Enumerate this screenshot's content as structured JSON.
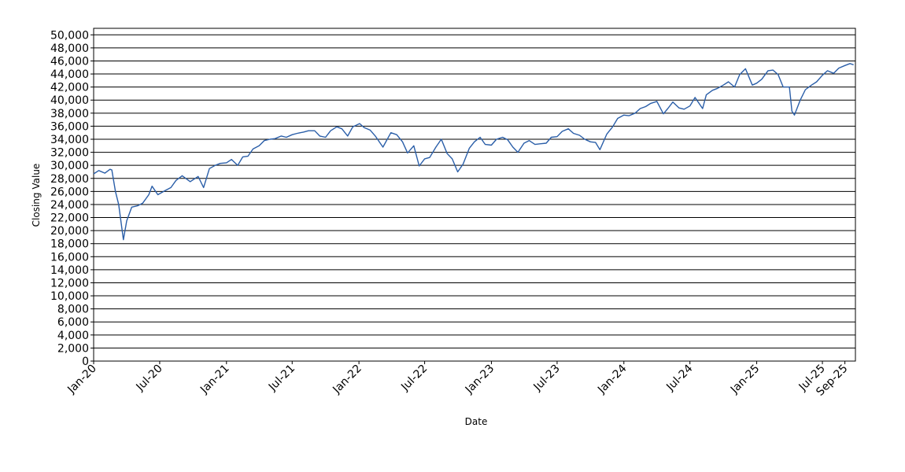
{
  "chart_data": {
    "type": "line",
    "title": "",
    "xlabel": "Date",
    "ylabel": "Closing Value",
    "x_ticks": [
      "Jan-20",
      "Jul-20",
      "Jan-21",
      "Jul-21",
      "Jan-22",
      "Jul-22",
      "Jan-23",
      "Jul-23",
      "Jan-24",
      "Jul-24",
      "Jan-25",
      "Jul-25",
      "Sep-25"
    ],
    "y_ticks": [
      "0",
      "2,000",
      "4,000",
      "6,000",
      "8,000",
      "10,000",
      "12,000",
      "14,000",
      "16,000",
      "18,000",
      "20,000",
      "22,000",
      "24,000",
      "26,000",
      "28,000",
      "30,000",
      "32,000",
      "34,000",
      "36,000",
      "38,000",
      "40,000",
      "42,000",
      "44,000",
      "46,000",
      "48,000",
      "50,000"
    ],
    "ylim": [
      0,
      51000
    ],
    "xlim": [
      "2020-01-01",
      "2025-09-30"
    ],
    "grid": true,
    "legend": "none",
    "line_color": "#2a5ea8",
    "series": [
      {
        "x": [
          "2020-01-01",
          "2020-01-15",
          "2020-02-01",
          "2020-02-15",
          "2020-02-20",
          "2020-03-01",
          "2020-03-10",
          "2020-03-23",
          "2020-04-01",
          "2020-04-15",
          "2020-05-01",
          "2020-05-15",
          "2020-06-01",
          "2020-06-10",
          "2020-06-26",
          "2020-07-15",
          "2020-08-01",
          "2020-08-15",
          "2020-09-01",
          "2020-09-23",
          "2020-10-15",
          "2020-10-30",
          "2020-11-15",
          "2020-12-01",
          "2020-12-15",
          "2021-01-01",
          "2021-01-15",
          "2021-02-01",
          "2021-02-15",
          "2021-03-01",
          "2021-03-15",
          "2021-04-01",
          "2021-04-15",
          "2021-05-01",
          "2021-05-15",
          "2021-06-01",
          "2021-06-15",
          "2021-07-01",
          "2021-07-15",
          "2021-08-01",
          "2021-08-15",
          "2021-09-01",
          "2021-09-15",
          "2021-10-01",
          "2021-10-15",
          "2021-11-01",
          "2021-11-15",
          "2021-12-01",
          "2021-12-15",
          "2022-01-03",
          "2022-01-15",
          "2022-02-01",
          "2022-02-15",
          "2022-03-08",
          "2022-03-30",
          "2022-04-15",
          "2022-05-01",
          "2022-05-15",
          "2022-06-01",
          "2022-06-16",
          "2022-07-01",
          "2022-07-15",
          "2022-08-01",
          "2022-08-16",
          "2022-09-01",
          "2022-09-15",
          "2022-09-30",
          "2022-10-15",
          "2022-11-01",
          "2022-11-15",
          "2022-12-01",
          "2022-12-15",
          "2023-01-01",
          "2023-01-15",
          "2023-02-01",
          "2023-02-15",
          "2023-03-01",
          "2023-03-15",
          "2023-04-01",
          "2023-04-15",
          "2023-05-01",
          "2023-05-15",
          "2023-06-01",
          "2023-06-15",
          "2023-07-01",
          "2023-07-15",
          "2023-08-01",
          "2023-08-15",
          "2023-09-01",
          "2023-09-15",
          "2023-10-01",
          "2023-10-15",
          "2023-10-27",
          "2023-11-15",
          "2023-12-01",
          "2023-12-15",
          "2024-01-01",
          "2024-01-15",
          "2024-02-01",
          "2024-02-15",
          "2024-03-01",
          "2024-03-15",
          "2024-04-01",
          "2024-04-19",
          "2024-05-01",
          "2024-05-15",
          "2024-06-01",
          "2024-06-15",
          "2024-07-01",
          "2024-07-15",
          "2024-08-05",
          "2024-08-15",
          "2024-09-01",
          "2024-09-15",
          "2024-10-01",
          "2024-10-15",
          "2024-11-01",
          "2024-11-15",
          "2024-12-01",
          "2024-12-20",
          "2025-01-01",
          "2025-01-15",
          "2025-02-01",
          "2025-02-15",
          "2025-03-01",
          "2025-03-15",
          "2025-04-01",
          "2025-04-08",
          "2025-04-15",
          "2025-05-01",
          "2025-05-15",
          "2025-06-01",
          "2025-06-15",
          "2025-07-01",
          "2025-07-15",
          "2025-08-01",
          "2025-08-15",
          "2025-09-01",
          "2025-09-15",
          "2025-09-25"
        ],
        "values": [
          28700,
          29200,
          28800,
          29400,
          29300,
          26000,
          24000,
          18600,
          21500,
          23600,
          23800,
          24200,
          25500,
          26800,
          25500,
          26100,
          26600,
          27700,
          28400,
          27500,
          28300,
          26600,
          29500,
          30000,
          30300,
          30400,
          30900,
          30000,
          31300,
          31400,
          32500,
          33000,
          33800,
          34000,
          34100,
          34500,
          34300,
          34700,
          34900,
          35100,
          35300,
          35300,
          34500,
          34300,
          35300,
          35900,
          35600,
          34500,
          35900,
          36400,
          35800,
          35400,
          34500,
          32800,
          35000,
          34700,
          33600,
          31900,
          33000,
          29900,
          31000,
          31200,
          32800,
          34000,
          31800,
          31000,
          29000,
          30200,
          32600,
          33600,
          34300,
          33200,
          33100,
          34000,
          34300,
          33900,
          32800,
          32000,
          33400,
          33800,
          33200,
          33300,
          33400,
          34300,
          34400,
          35200,
          35600,
          34900,
          34600,
          34000,
          33600,
          33500,
          32400,
          34800,
          35900,
          37200,
          37700,
          37600,
          38000,
          38700,
          39000,
          39500,
          39800,
          37900,
          38700,
          39700,
          38800,
          38600,
          39100,
          40400,
          38700,
          40800,
          41500,
          41800,
          42300,
          42800,
          42000,
          43900,
          44800,
          42300,
          42600,
          43200,
          44500,
          44600,
          43900,
          42000,
          42000,
          38300,
          37700,
          40000,
          41600,
          42300,
          42800,
          43800,
          44500,
          44100,
          44900,
          45300,
          45600,
          45400
        ]
      }
    ]
  }
}
